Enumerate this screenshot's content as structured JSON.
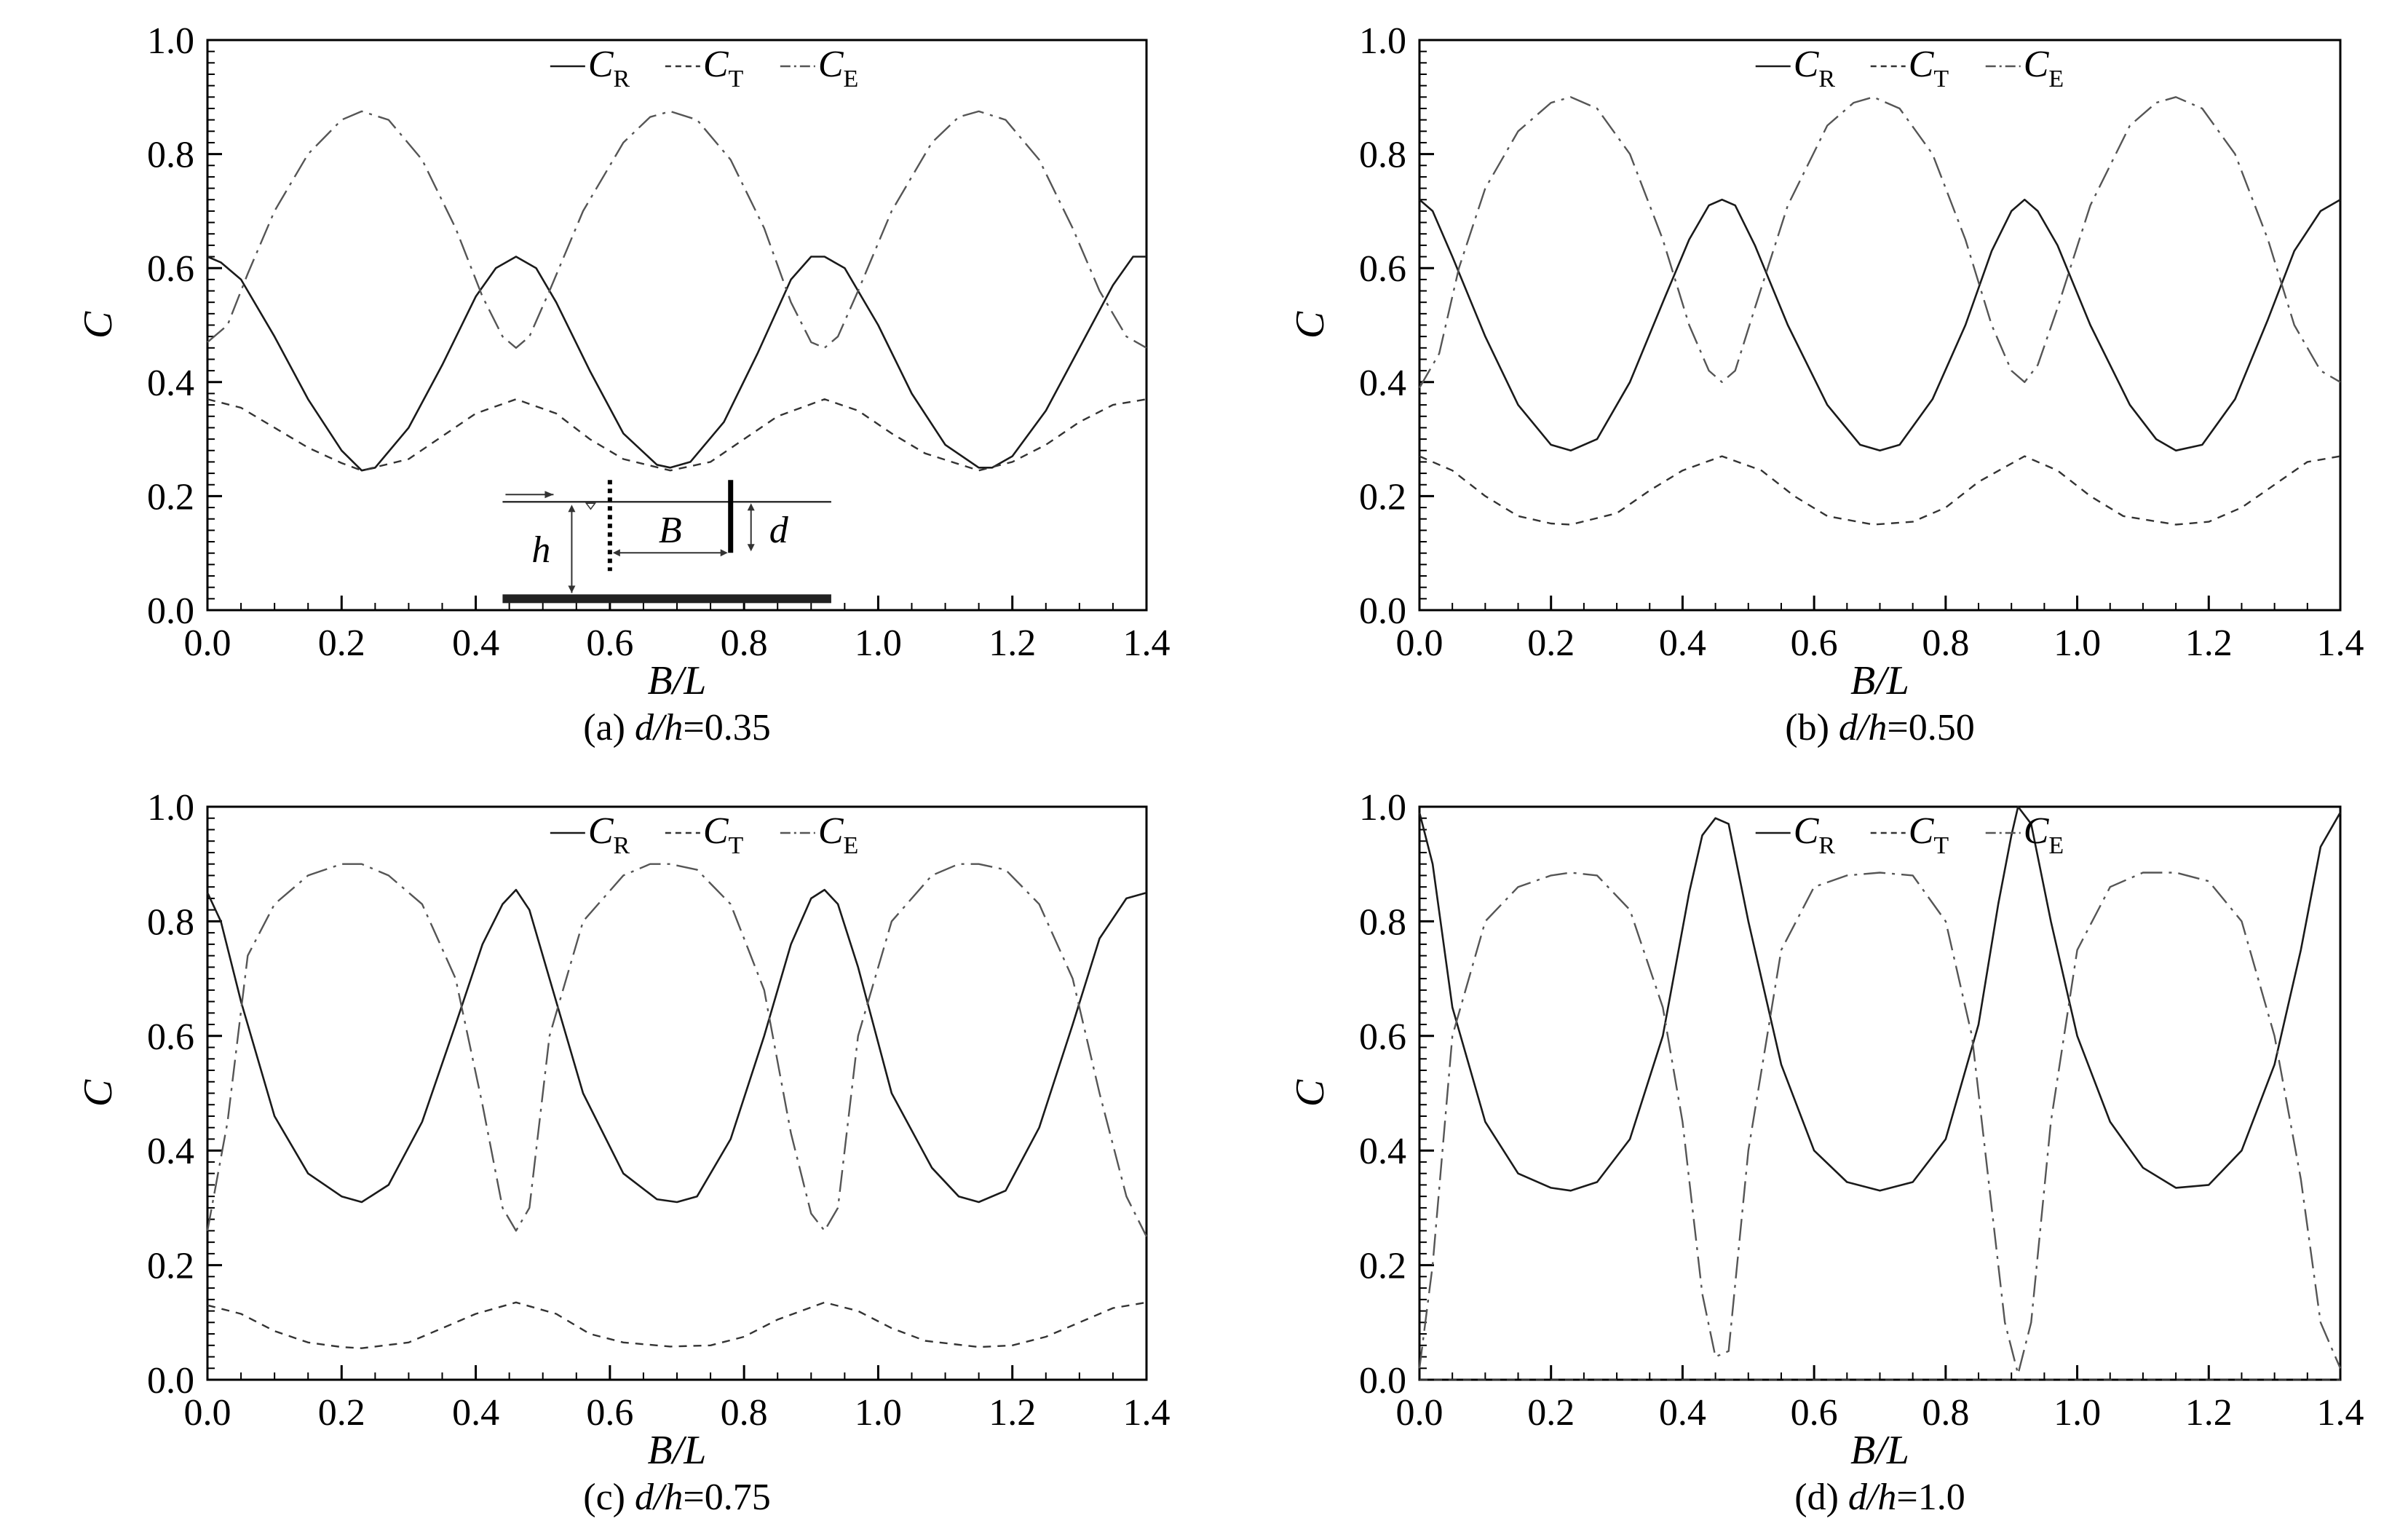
{
  "chart_data": [
    {
      "type": "line",
      "caption": {
        "prefix": "(a) ",
        "var": "d/h",
        "value": "=0.35"
      },
      "xlabel": "B/L",
      "ylabel": "C",
      "xlim": [
        0,
        1.4
      ],
      "ylim": [
        0,
        1.0
      ],
      "xticks": [
        "0.0",
        "0.2",
        "0.4",
        "0.6",
        "0.8",
        "1.0",
        "1.2",
        "1.4"
      ],
      "yticks": [
        "0.0",
        "0.2",
        "0.4",
        "0.6",
        "0.8",
        "1.0"
      ],
      "legend": {
        "placement": "top-center",
        "entries": [
          {
            "main": "C",
            "sub": "R"
          },
          {
            "main": "C",
            "sub": "T"
          },
          {
            "main": "C",
            "sub": "E"
          }
        ]
      },
      "inset": {
        "labels": [
          "B",
          "h",
          "d"
        ]
      },
      "series": [
        {
          "name": "C_R",
          "style": "solid",
          "x": [
            0,
            0.02,
            0.05,
            0.1,
            0.15,
            0.2,
            0.23,
            0.25,
            0.3,
            0.35,
            0.4,
            0.43,
            0.46,
            0.49,
            0.52,
            0.57,
            0.62,
            0.67,
            0.69,
            0.72,
            0.77,
            0.82,
            0.87,
            0.9,
            0.92,
            0.95,
            1.0,
            1.05,
            1.1,
            1.15,
            1.17,
            1.2,
            1.25,
            1.3,
            1.35,
            1.38,
            1.4
          ],
          "y": [
            0.62,
            0.61,
            0.58,
            0.48,
            0.37,
            0.28,
            0.245,
            0.25,
            0.32,
            0.43,
            0.55,
            0.6,
            0.62,
            0.6,
            0.54,
            0.42,
            0.31,
            0.255,
            0.25,
            0.26,
            0.33,
            0.45,
            0.58,
            0.62,
            0.62,
            0.6,
            0.5,
            0.38,
            0.29,
            0.25,
            0.25,
            0.27,
            0.35,
            0.46,
            0.57,
            0.62,
            0.62
          ]
        },
        {
          "name": "C_T",
          "style": "dashed",
          "x": [
            0,
            0.05,
            0.1,
            0.15,
            0.2,
            0.23,
            0.3,
            0.35,
            0.4,
            0.46,
            0.52,
            0.57,
            0.62,
            0.69,
            0.75,
            0.8,
            0.85,
            0.92,
            0.97,
            1.02,
            1.07,
            1.15,
            1.2,
            1.25,
            1.3,
            1.35,
            1.4
          ],
          "y": [
            0.37,
            0.355,
            0.32,
            0.285,
            0.258,
            0.245,
            0.265,
            0.305,
            0.345,
            0.37,
            0.345,
            0.3,
            0.265,
            0.245,
            0.26,
            0.3,
            0.34,
            0.37,
            0.35,
            0.31,
            0.275,
            0.245,
            0.26,
            0.29,
            0.33,
            0.36,
            0.37
          ]
        },
        {
          "name": "C_E",
          "style": "dash-dot",
          "x": [
            0,
            0.03,
            0.06,
            0.1,
            0.15,
            0.2,
            0.23,
            0.27,
            0.32,
            0.37,
            0.41,
            0.44,
            0.46,
            0.48,
            0.51,
            0.56,
            0.62,
            0.66,
            0.69,
            0.73,
            0.78,
            0.83,
            0.87,
            0.9,
            0.92,
            0.94,
            0.97,
            1.02,
            1.08,
            1.12,
            1.15,
            1.19,
            1.24,
            1.29,
            1.33,
            1.37,
            1.4
          ],
          "y": [
            0.47,
            0.5,
            0.59,
            0.7,
            0.8,
            0.86,
            0.875,
            0.86,
            0.79,
            0.67,
            0.55,
            0.48,
            0.46,
            0.48,
            0.56,
            0.7,
            0.82,
            0.865,
            0.875,
            0.86,
            0.79,
            0.67,
            0.54,
            0.47,
            0.46,
            0.48,
            0.56,
            0.7,
            0.82,
            0.865,
            0.875,
            0.86,
            0.79,
            0.67,
            0.56,
            0.48,
            0.46
          ]
        }
      ]
    },
    {
      "type": "line",
      "caption": {
        "prefix": "(b) ",
        "var": "d/h",
        "value": "=0.50"
      },
      "xlabel": "B/L",
      "ylabel": "C",
      "xlim": [
        0,
        1.4
      ],
      "ylim": [
        0,
        1.0
      ],
      "xticks": [
        "0.0",
        "0.2",
        "0.4",
        "0.6",
        "0.8",
        "1.0",
        "1.2",
        "1.4"
      ],
      "yticks": [
        "0.0",
        "0.2",
        "0.4",
        "0.6",
        "0.8",
        "1.0"
      ],
      "legend": {
        "placement": "top-center",
        "entries": [
          {
            "main": "C",
            "sub": "R"
          },
          {
            "main": "C",
            "sub": "T"
          },
          {
            "main": "C",
            "sub": "E"
          }
        ]
      },
      "series": [
        {
          "name": "C_R",
          "style": "solid",
          "x": [
            0,
            0.02,
            0.05,
            0.1,
            0.15,
            0.2,
            0.23,
            0.27,
            0.32,
            0.37,
            0.41,
            0.44,
            0.46,
            0.48,
            0.51,
            0.56,
            0.62,
            0.67,
            0.7,
            0.73,
            0.78,
            0.83,
            0.87,
            0.9,
            0.92,
            0.94,
            0.97,
            1.02,
            1.08,
            1.12,
            1.15,
            1.19,
            1.24,
            1.29,
            1.33,
            1.37,
            1.4
          ],
          "y": [
            0.72,
            0.7,
            0.62,
            0.48,
            0.36,
            0.29,
            0.28,
            0.3,
            0.4,
            0.54,
            0.65,
            0.71,
            0.72,
            0.71,
            0.64,
            0.5,
            0.36,
            0.29,
            0.28,
            0.29,
            0.37,
            0.5,
            0.63,
            0.7,
            0.72,
            0.7,
            0.64,
            0.5,
            0.36,
            0.3,
            0.28,
            0.29,
            0.37,
            0.51,
            0.63,
            0.7,
            0.72
          ]
        },
        {
          "name": "C_T",
          "style": "dashed",
          "x": [
            0,
            0.05,
            0.1,
            0.15,
            0.2,
            0.23,
            0.3,
            0.35,
            0.4,
            0.46,
            0.52,
            0.57,
            0.62,
            0.69,
            0.75,
            0.8,
            0.85,
            0.92,
            0.97,
            1.02,
            1.07,
            1.15,
            1.2,
            1.25,
            1.3,
            1.35,
            1.4
          ],
          "y": [
            0.27,
            0.245,
            0.2,
            0.165,
            0.152,
            0.15,
            0.17,
            0.21,
            0.245,
            0.27,
            0.245,
            0.2,
            0.165,
            0.15,
            0.155,
            0.18,
            0.225,
            0.27,
            0.245,
            0.2,
            0.165,
            0.15,
            0.155,
            0.18,
            0.22,
            0.26,
            0.27
          ]
        },
        {
          "name": "C_E",
          "style": "dash-dot",
          "x": [
            0,
            0.03,
            0.06,
            0.1,
            0.15,
            0.2,
            0.23,
            0.27,
            0.32,
            0.37,
            0.41,
            0.44,
            0.46,
            0.48,
            0.51,
            0.56,
            0.62,
            0.66,
            0.69,
            0.73,
            0.78,
            0.83,
            0.87,
            0.9,
            0.92,
            0.94,
            0.97,
            1.02,
            1.08,
            1.12,
            1.15,
            1.19,
            1.24,
            1.29,
            1.33,
            1.37,
            1.4
          ],
          "y": [
            0.39,
            0.45,
            0.6,
            0.74,
            0.84,
            0.89,
            0.9,
            0.88,
            0.8,
            0.65,
            0.5,
            0.42,
            0.4,
            0.42,
            0.53,
            0.71,
            0.85,
            0.89,
            0.9,
            0.88,
            0.8,
            0.65,
            0.5,
            0.42,
            0.4,
            0.43,
            0.53,
            0.71,
            0.85,
            0.89,
            0.9,
            0.88,
            0.8,
            0.65,
            0.5,
            0.42,
            0.4
          ]
        }
      ]
    },
    {
      "type": "line",
      "caption": {
        "prefix": "(c) ",
        "var": "d/h",
        "value": "=0.75"
      },
      "xlabel": "B/L",
      "ylabel": "C",
      "xlim": [
        0,
        1.4
      ],
      "ylim": [
        0,
        1.0
      ],
      "xticks": [
        "0.0",
        "0.2",
        "0.4",
        "0.6",
        "0.8",
        "1.0",
        "1.2",
        "1.4"
      ],
      "yticks": [
        "0.0",
        "0.2",
        "0.4",
        "0.6",
        "0.8",
        "1.0"
      ],
      "legend": {
        "placement": "top-center",
        "entries": [
          {
            "main": "C",
            "sub": "R"
          },
          {
            "main": "C",
            "sub": "T"
          },
          {
            "main": "C",
            "sub": "E"
          }
        ]
      },
      "series": [
        {
          "name": "C_R",
          "style": "solid",
          "x": [
            0,
            0.02,
            0.05,
            0.1,
            0.15,
            0.2,
            0.23,
            0.27,
            0.32,
            0.37,
            0.41,
            0.44,
            0.46,
            0.48,
            0.51,
            0.56,
            0.62,
            0.67,
            0.7,
            0.73,
            0.78,
            0.83,
            0.87,
            0.9,
            0.92,
            0.94,
            0.97,
            1.02,
            1.08,
            1.12,
            1.15,
            1.19,
            1.24,
            1.29,
            1.33,
            1.37,
            1.4
          ],
          "y": [
            0.85,
            0.8,
            0.66,
            0.46,
            0.36,
            0.32,
            0.31,
            0.34,
            0.45,
            0.62,
            0.76,
            0.83,
            0.855,
            0.82,
            0.7,
            0.5,
            0.36,
            0.315,
            0.31,
            0.32,
            0.42,
            0.6,
            0.76,
            0.84,
            0.855,
            0.83,
            0.72,
            0.5,
            0.37,
            0.32,
            0.31,
            0.33,
            0.44,
            0.62,
            0.77,
            0.84,
            0.85
          ]
        },
        {
          "name": "C_T",
          "style": "dashed",
          "x": [
            0,
            0.05,
            0.1,
            0.15,
            0.2,
            0.23,
            0.3,
            0.35,
            0.4,
            0.46,
            0.52,
            0.57,
            0.62,
            0.69,
            0.75,
            0.8,
            0.85,
            0.92,
            0.97,
            1.02,
            1.07,
            1.15,
            1.2,
            1.25,
            1.3,
            1.35,
            1.4
          ],
          "y": [
            0.13,
            0.115,
            0.085,
            0.065,
            0.057,
            0.055,
            0.065,
            0.09,
            0.115,
            0.135,
            0.115,
            0.08,
            0.065,
            0.058,
            0.06,
            0.075,
            0.105,
            0.135,
            0.12,
            0.09,
            0.068,
            0.057,
            0.06,
            0.075,
            0.1,
            0.125,
            0.135
          ]
        },
        {
          "name": "C_E",
          "style": "dash-dot",
          "x": [
            0,
            0.03,
            0.06,
            0.1,
            0.15,
            0.2,
            0.23,
            0.27,
            0.32,
            0.37,
            0.41,
            0.44,
            0.46,
            0.48,
            0.51,
            0.56,
            0.62,
            0.66,
            0.69,
            0.73,
            0.78,
            0.83,
            0.87,
            0.9,
            0.92,
            0.94,
            0.97,
            1.02,
            1.08,
            1.12,
            1.15,
            1.19,
            1.24,
            1.29,
            1.33,
            1.37,
            1.4
          ],
          "y": [
            0.26,
            0.45,
            0.74,
            0.83,
            0.88,
            0.9,
            0.9,
            0.88,
            0.83,
            0.7,
            0.48,
            0.3,
            0.26,
            0.3,
            0.6,
            0.8,
            0.88,
            0.9,
            0.9,
            0.89,
            0.83,
            0.68,
            0.43,
            0.29,
            0.26,
            0.3,
            0.6,
            0.8,
            0.88,
            0.9,
            0.9,
            0.89,
            0.83,
            0.7,
            0.5,
            0.32,
            0.25
          ]
        }
      ]
    },
    {
      "type": "line",
      "caption": {
        "prefix": "(d) ",
        "var": "d/h",
        "value": "=1.0"
      },
      "xlabel": "B/L",
      "ylabel": "C",
      "xlim": [
        0,
        1.4
      ],
      "ylim": [
        0,
        1.0
      ],
      "xticks": [
        "0.0",
        "0.2",
        "0.4",
        "0.6",
        "0.8",
        "1.0",
        "1.2",
        "1.4"
      ],
      "yticks": [
        "0.0",
        "0.2",
        "0.4",
        "0.6",
        "0.8",
        "1.0"
      ],
      "legend": {
        "placement": "top-center",
        "entries": [
          {
            "main": "C",
            "sub": "R"
          },
          {
            "main": "C",
            "sub": "T"
          },
          {
            "main": "C",
            "sub": "E"
          }
        ]
      },
      "series": [
        {
          "name": "C_R",
          "style": "solid",
          "x": [
            0,
            0.02,
            0.05,
            0.1,
            0.15,
            0.2,
            0.23,
            0.27,
            0.32,
            0.37,
            0.41,
            0.43,
            0.45,
            0.47,
            0.5,
            0.55,
            0.6,
            0.65,
            0.7,
            0.75,
            0.8,
            0.85,
            0.88,
            0.9,
            0.91,
            0.93,
            0.96,
            1.0,
            1.05,
            1.1,
            1.15,
            1.2,
            1.25,
            1.3,
            1.34,
            1.37,
            1.4
          ],
          "y": [
            0.99,
            0.9,
            0.65,
            0.45,
            0.36,
            0.335,
            0.33,
            0.345,
            0.42,
            0.6,
            0.85,
            0.95,
            0.98,
            0.97,
            0.8,
            0.55,
            0.4,
            0.345,
            0.33,
            0.345,
            0.42,
            0.62,
            0.83,
            0.95,
            1.0,
            0.97,
            0.8,
            0.6,
            0.45,
            0.37,
            0.335,
            0.34,
            0.4,
            0.55,
            0.75,
            0.93,
            0.99
          ]
        },
        {
          "name": "C_T",
          "style": "dashed",
          "x": [
            0,
            1.4
          ],
          "y": [
            0,
            0
          ]
        },
        {
          "name": "C_E",
          "style": "dash-dot",
          "x": [
            0,
            0.02,
            0.05,
            0.1,
            0.15,
            0.2,
            0.23,
            0.27,
            0.32,
            0.37,
            0.4,
            0.43,
            0.45,
            0.47,
            0.5,
            0.55,
            0.6,
            0.65,
            0.7,
            0.75,
            0.8,
            0.84,
            0.87,
            0.89,
            0.91,
            0.93,
            0.96,
            1.0,
            1.05,
            1.1,
            1.15,
            1.2,
            1.25,
            1.3,
            1.34,
            1.37,
            1.4
          ],
          "y": [
            0.02,
            0.2,
            0.6,
            0.8,
            0.86,
            0.88,
            0.885,
            0.88,
            0.82,
            0.65,
            0.45,
            0.15,
            0.04,
            0.05,
            0.4,
            0.75,
            0.86,
            0.88,
            0.885,
            0.88,
            0.8,
            0.6,
            0.3,
            0.1,
            0.01,
            0.1,
            0.45,
            0.75,
            0.86,
            0.885,
            0.885,
            0.87,
            0.8,
            0.6,
            0.35,
            0.1,
            0.02
          ]
        }
      ]
    }
  ]
}
